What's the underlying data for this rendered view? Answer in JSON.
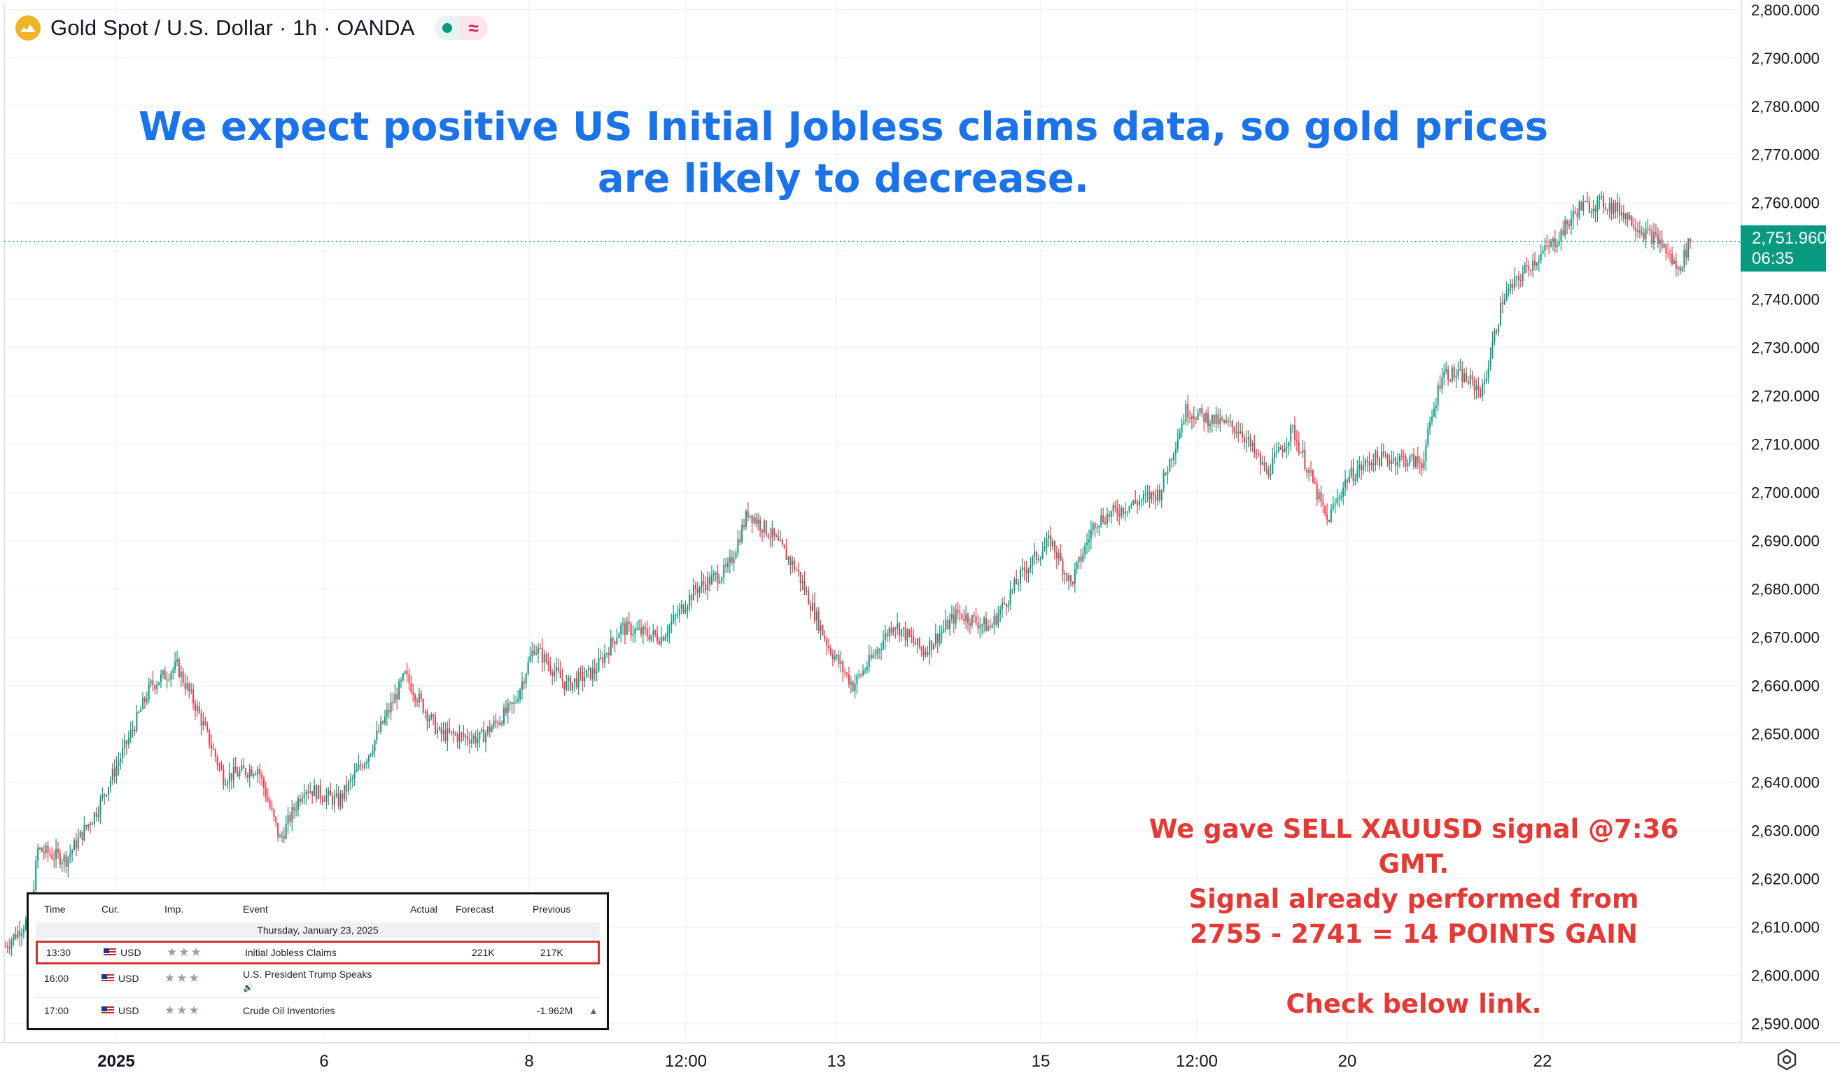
{
  "header": {
    "symbol_title": "Gold Spot / U.S. Dollar · 1h · OANDA",
    "logo_icon": "gold-coin-icon",
    "status_dot_icon": "market-open-dot-icon",
    "indicator_icon": "wave-icon"
  },
  "annotations": {
    "headline": "We expect positive US Initial Jobless claims data, so gold prices are likely to decrease.",
    "signal_lines": [
      "We gave SELL XAUUSD signal @7:36 GMT.",
      "Signal already performed from",
      "2755 - 2741 = 14 POINTS GAIN",
      "",
      "Check below link."
    ]
  },
  "price_badge": {
    "price": "2,751.960",
    "countdown": "06:35"
  },
  "calendar": {
    "columns": [
      "Time",
      "Cur.",
      "Imp.",
      "Event",
      "Actual",
      "Forecast",
      "Previous"
    ],
    "date": "Thursday, January 23, 2025",
    "rows": [
      {
        "time": "13:30",
        "currency": "USD",
        "importance": "★★★",
        "event": "Initial Jobless Claims",
        "actual": "",
        "forecast": "221K",
        "previous": "217K",
        "highlighted": true
      },
      {
        "time": "16:00",
        "currency": "USD",
        "importance": "★★★",
        "event": "U.S. President Trump Speaks",
        "actual": "",
        "forecast": "",
        "previous": "",
        "highlighted": false
      },
      {
        "time": "17:00",
        "currency": "USD",
        "importance": "★★★",
        "event": "Crude Oil Inventories",
        "actual": "",
        "forecast": "",
        "previous": "-1.962M",
        "highlighted": false
      }
    ]
  },
  "colors": {
    "up": "#089981",
    "down": "#f23645",
    "headline": "#1a73e8",
    "signal": "#e53935"
  },
  "chart_data": {
    "type": "candlestick",
    "title": "Gold Spot / U.S. Dollar · 1h · OANDA",
    "ylim": [
      2586,
      2802
    ],
    "y_ticks": [
      "2,590.000",
      "2,600.000",
      "2,610.000",
      "2,620.000",
      "2,630.000",
      "2,640.000",
      "2,650.000",
      "2,660.000",
      "2,670.000",
      "2,680.000",
      "2,690.000",
      "2,700.000",
      "2,710.000",
      "2,720.000",
      "2,730.000",
      "2,740.000",
      "2,750.000",
      "2,760.000",
      "2,770.000",
      "2,780.000",
      "2,790.000",
      "2,800.000"
    ],
    "x_ticks": [
      "2025",
      "6",
      "8",
      "12:00",
      "13",
      "15",
      "12:00",
      "20",
      "22"
    ],
    "last_price": 2751.96,
    "waypoints": [
      [
        0,
        2606
      ],
      [
        12,
        2612
      ],
      [
        16,
        2626
      ],
      [
        30,
        2624
      ],
      [
        45,
        2634
      ],
      [
        60,
        2648
      ],
      [
        72,
        2660
      ],
      [
        85,
        2664
      ],
      [
        95,
        2655
      ],
      [
        108,
        2641
      ],
      [
        125,
        2643
      ],
      [
        136,
        2628
      ],
      [
        148,
        2639
      ],
      [
        165,
        2636
      ],
      [
        180,
        2646
      ],
      [
        198,
        2662
      ],
      [
        215,
        2650
      ],
      [
        235,
        2649
      ],
      [
        252,
        2656
      ],
      [
        262,
        2668
      ],
      [
        278,
        2660
      ],
      [
        292,
        2663
      ],
      [
        305,
        2672
      ],
      [
        325,
        2670
      ],
      [
        342,
        2680
      ],
      [
        358,
        2684
      ],
      [
        368,
        2696
      ],
      [
        380,
        2691
      ],
      [
        392,
        2684
      ],
      [
        408,
        2668
      ],
      [
        420,
        2660
      ],
      [
        430,
        2666
      ],
      [
        440,
        2673
      ],
      [
        455,
        2667
      ],
      [
        472,
        2675
      ],
      [
        488,
        2672
      ],
      [
        505,
        2684
      ],
      [
        518,
        2690
      ],
      [
        528,
        2681
      ],
      [
        540,
        2694
      ],
      [
        555,
        2697
      ],
      [
        572,
        2700
      ],
      [
        585,
        2717
      ],
      [
        598,
        2715
      ],
      [
        612,
        2713
      ],
      [
        625,
        2704
      ],
      [
        638,
        2713
      ],
      [
        648,
        2702
      ],
      [
        655,
        2694
      ],
      [
        665,
        2703
      ],
      [
        678,
        2707
      ],
      [
        692,
        2707
      ],
      [
        702,
        2706
      ],
      [
        712,
        2725
      ],
      [
        722,
        2724
      ],
      [
        732,
        2721
      ],
      [
        742,
        2740
      ],
      [
        755,
        2747
      ],
      [
        768,
        2752
      ],
      [
        780,
        2759
      ],
      [
        792,
        2760
      ],
      [
        802,
        2758
      ],
      [
        812,
        2754
      ],
      [
        820,
        2752
      ],
      [
        829,
        2746
      ],
      [
        835,
        2752
      ]
    ]
  }
}
